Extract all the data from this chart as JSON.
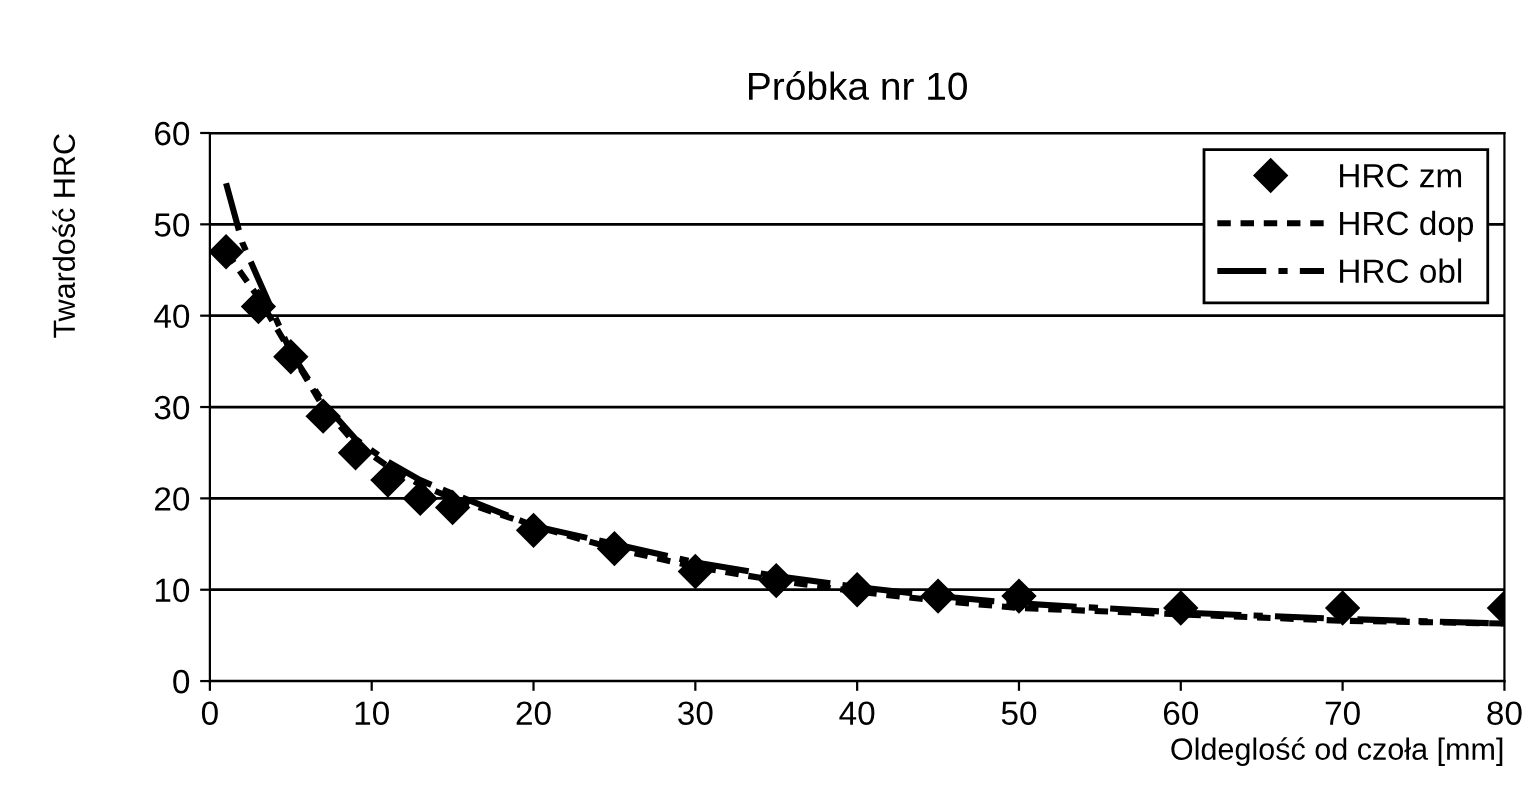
{
  "chart_data": {
    "type": "line",
    "title": "Próbka nr 10",
    "xlabel": "Oldeglość od czoła [mm]",
    "ylabel": "Twardość HRC",
    "xlim": [
      0,
      80
    ],
    "xticks": [
      0,
      10,
      20,
      30,
      40,
      50,
      60,
      70,
      80
    ],
    "ylim": [
      0,
      60
    ],
    "yticks": [
      0,
      10,
      20,
      30,
      40,
      50,
      60
    ],
    "grid": "y",
    "legend": "top right",
    "series": [
      {
        "name": "HRC zm",
        "type": "scatter",
        "marker": "diamond",
        "color": "#000000",
        "x": [
          1,
          3,
          5,
          7,
          9,
          11,
          13,
          15,
          20,
          25,
          30,
          35,
          40,
          45,
          50,
          60,
          70,
          80
        ],
        "values": [
          47,
          41,
          35.5,
          29,
          25,
          22,
          20,
          19,
          16.5,
          14.5,
          12,
          11,
          10,
          9.3,
          9.3,
          8,
          8,
          8
        ]
      },
      {
        "name": "HRC dop",
        "line_style": "dotted",
        "color": "#000000",
        "x": [
          1,
          3,
          5,
          7,
          9,
          11,
          13,
          15,
          20,
          25,
          30,
          35,
          40,
          45,
          50,
          60,
          70,
          80
        ],
        "values": [
          47,
          42,
          36,
          30,
          26,
          23.5,
          21.5,
          20,
          17,
          14.5,
          12.5,
          11,
          9.8,
          8.8,
          8,
          7.3,
          6.6,
          6.3
        ]
      },
      {
        "name": "HRC obl",
        "line_style": "dashed",
        "color": "#000000",
        "x": [
          1,
          2,
          3,
          5,
          7,
          9,
          11,
          13,
          15,
          20,
          25,
          30,
          35,
          40,
          45,
          50,
          60,
          70,
          80
        ],
        "values": [
          54.5,
          48,
          44,
          36,
          30.5,
          26.5,
          24,
          22,
          20.5,
          17,
          15,
          13,
          11.5,
          10.3,
          9.3,
          8.5,
          7.5,
          6.8,
          6.3
        ]
      }
    ]
  }
}
